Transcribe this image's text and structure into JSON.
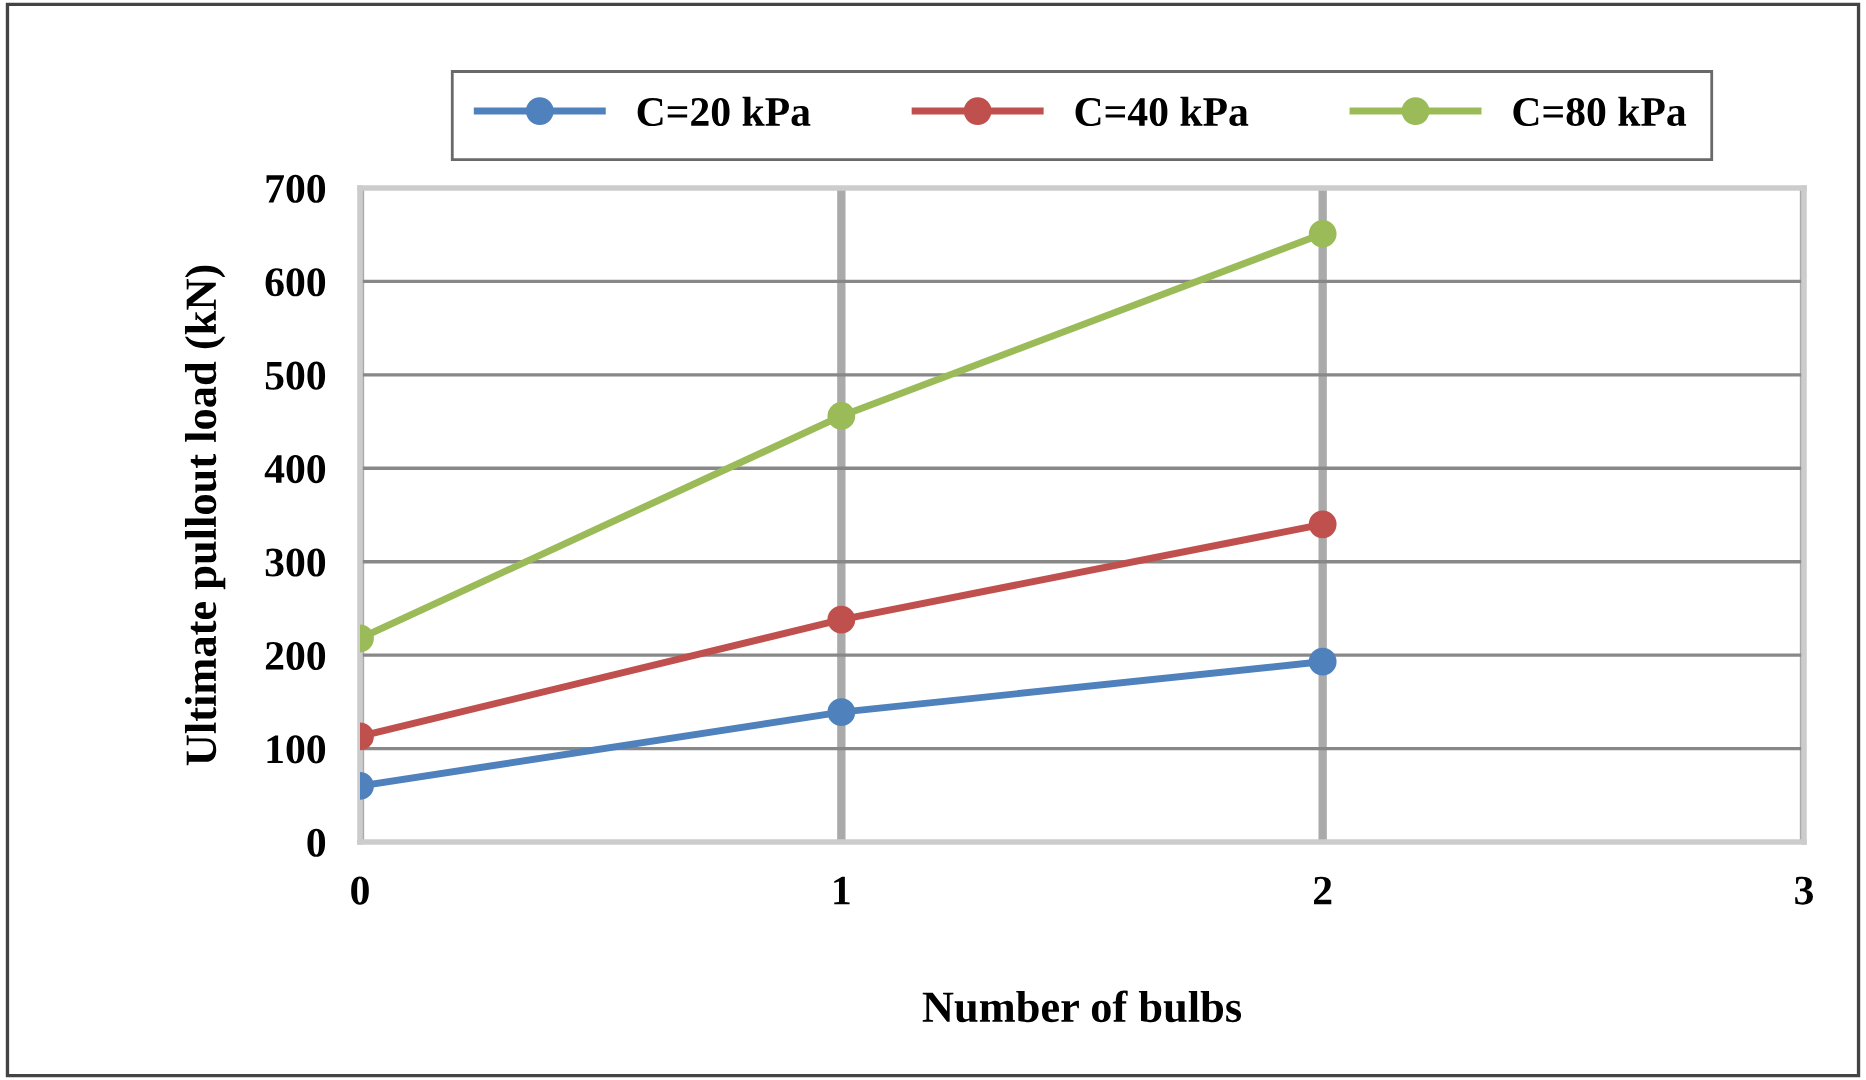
{
  "chart_data": {
    "type": "line",
    "xlabel": "Number of bulbs",
    "ylabel": "Ultimate pullout load (kN)",
    "x": [
      0,
      1,
      2
    ],
    "series": [
      {
        "name": "C=20 kPa",
        "color": "#4f81bd",
        "values": [
          60,
          139,
          193
        ]
      },
      {
        "name": "C=40 kPa",
        "color": "#c0504d",
        "values": [
          113,
          238,
          340
        ]
      },
      {
        "name": "C=80 kPa",
        "color": "#9bbb59",
        "values": [
          218,
          456,
          651
        ]
      }
    ],
    "xlim": [
      0,
      3
    ],
    "xticks": [
      0,
      1,
      2,
      3
    ],
    "ylim": [
      0,
      700
    ],
    "yticks": [
      0,
      100,
      200,
      300,
      400,
      500,
      600,
      700
    ],
    "grid": true,
    "legend": "top",
    "marker": "circle",
    "line_style": "solid"
  }
}
